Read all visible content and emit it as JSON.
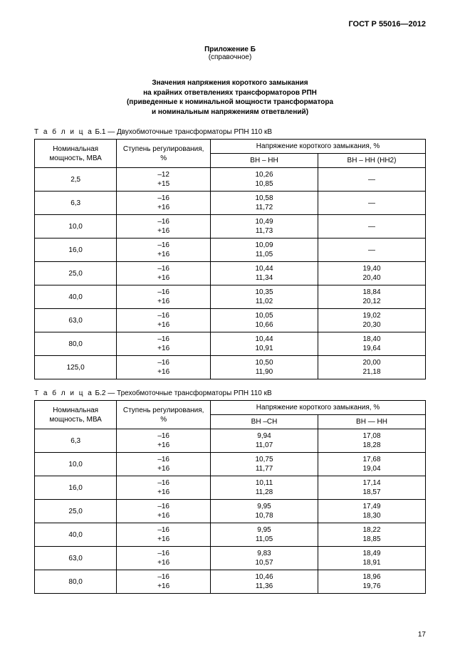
{
  "doc_id": "ГОСТ Р 55016—2012",
  "appendix_label": "Приложение Б",
  "appendix_note": "(справочное)",
  "title_lines": [
    "Значения напряжения короткого замыкания",
    "на крайних ответвлениях трансформаторов РПН",
    "(приведенные к номинальной мощности трансформатора",
    "и номинальным напряжениям ответвлений)"
  ],
  "t1": {
    "caption_prefix": "Т а б л и ц а",
    "caption": " Б.1 — Двухобмоточные трансформаторы РПН 110 кВ",
    "headers": {
      "power": "Номинальная мощность, МВА",
      "step": "Ступень регулирования, %",
      "voltage_group": "Напряжение короткого замыкания, %",
      "col3": "ВН – НН",
      "col4": "ВН –  НН (НН2)"
    },
    "rows": [
      {
        "p": "2,5",
        "s": "–12\n+15",
        "c3": "10,26\n10,85",
        "c4": "—"
      },
      {
        "p": "6,3",
        "s": "–16\n+16",
        "c3": "10,58\n11,72",
        "c4": "—"
      },
      {
        "p": "10,0",
        "s": "–16\n+16",
        "c3": "10,49\n11,73",
        "c4": "—"
      },
      {
        "p": "16,0",
        "s": "–16\n+16",
        "c3": "10,09\n11,05",
        "c4": "—"
      },
      {
        "p": "25,0",
        "s": "–16\n+16",
        "c3": "10,44\n11,34",
        "c4": "19,40\n20,40"
      },
      {
        "p": "40,0",
        "s": "–16\n+16",
        "c3": "10,35\n11,02",
        "c4": "18,84\n20,12"
      },
      {
        "p": "63,0",
        "s": "–16\n+16",
        "c3": "10,05\n10,66",
        "c4": "19,02\n20,30"
      },
      {
        "p": "80,0",
        "s": "–16\n+16",
        "c3": "10,44\n10,91",
        "c4": "18,40\n19,64"
      },
      {
        "p": "125,0",
        "s": "–16\n+16",
        "c3": "10,50\n11,90",
        "c4": "20,00\n21,18"
      }
    ]
  },
  "t2": {
    "caption_prefix": "Т а б л и ц а",
    "caption": " Б.2 — Трехобмоточные трансформаторы РПН 110 кВ",
    "headers": {
      "power": "Номинальная мощность, МВА",
      "step": "Ступень регулирования, %",
      "voltage_group": "Напряжение короткого замыкания, %",
      "col3": "ВН –СН",
      "col4": "ВН — НН"
    },
    "rows": [
      {
        "p": "6,3",
        "s": "–16\n+16",
        "c3": "9,94\n11,07",
        "c4": "17,08\n18,28"
      },
      {
        "p": "10,0",
        "s": "–16\n+16",
        "c3": "10,75\n11,77",
        "c4": "17,68\n19,04"
      },
      {
        "p": "16,0",
        "s": "–16\n+16",
        "c3": "10,11\n11,28",
        "c4": "17,14\n18,57"
      },
      {
        "p": "25,0",
        "s": "–16\n+16",
        "c3": "9,95\n10,78",
        "c4": "17,49\n18,30"
      },
      {
        "p": "40,0",
        "s": "–16\n+16",
        "c3": "9,95\n11,05",
        "c4": "18,22\n18,85"
      },
      {
        "p": "63,0",
        "s": "–16\n+16",
        "c3": "9,83\n10,57",
        "c4": "18,49\n18,91"
      },
      {
        "p": "80,0",
        "s": "–16\n+16",
        "c3": "10,46\n11,36",
        "c4": "18,96\n19,76"
      }
    ]
  },
  "page_number": "17"
}
